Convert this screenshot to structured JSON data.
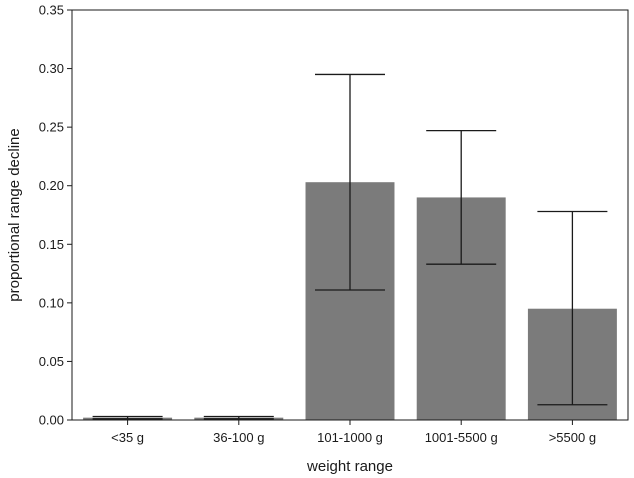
{
  "chart_data": {
    "type": "bar",
    "xlabel": "weight range",
    "ylabel": "proportional range decline",
    "categories": [
      "<35 g",
      "36-100 g",
      "101-1000 g",
      "1001-5500 g",
      ">5500 g"
    ],
    "values": [
      0.002,
      0.002,
      0.203,
      0.19,
      0.095
    ],
    "error_low": [
      0.001,
      0.001,
      0.111,
      0.133,
      0.013
    ],
    "error_high": [
      0.003,
      0.003,
      0.295,
      0.247,
      0.178
    ],
    "ylim": [
      0,
      0.35
    ],
    "yticks": [
      "0.00",
      "0.05",
      "0.10",
      "0.15",
      "0.20",
      "0.25",
      "0.30",
      "0.35"
    ],
    "grid": false,
    "colors": {
      "bar": "#7b7b7b",
      "error": "#1a1a1a",
      "axis": "#1a1a1a"
    }
  }
}
